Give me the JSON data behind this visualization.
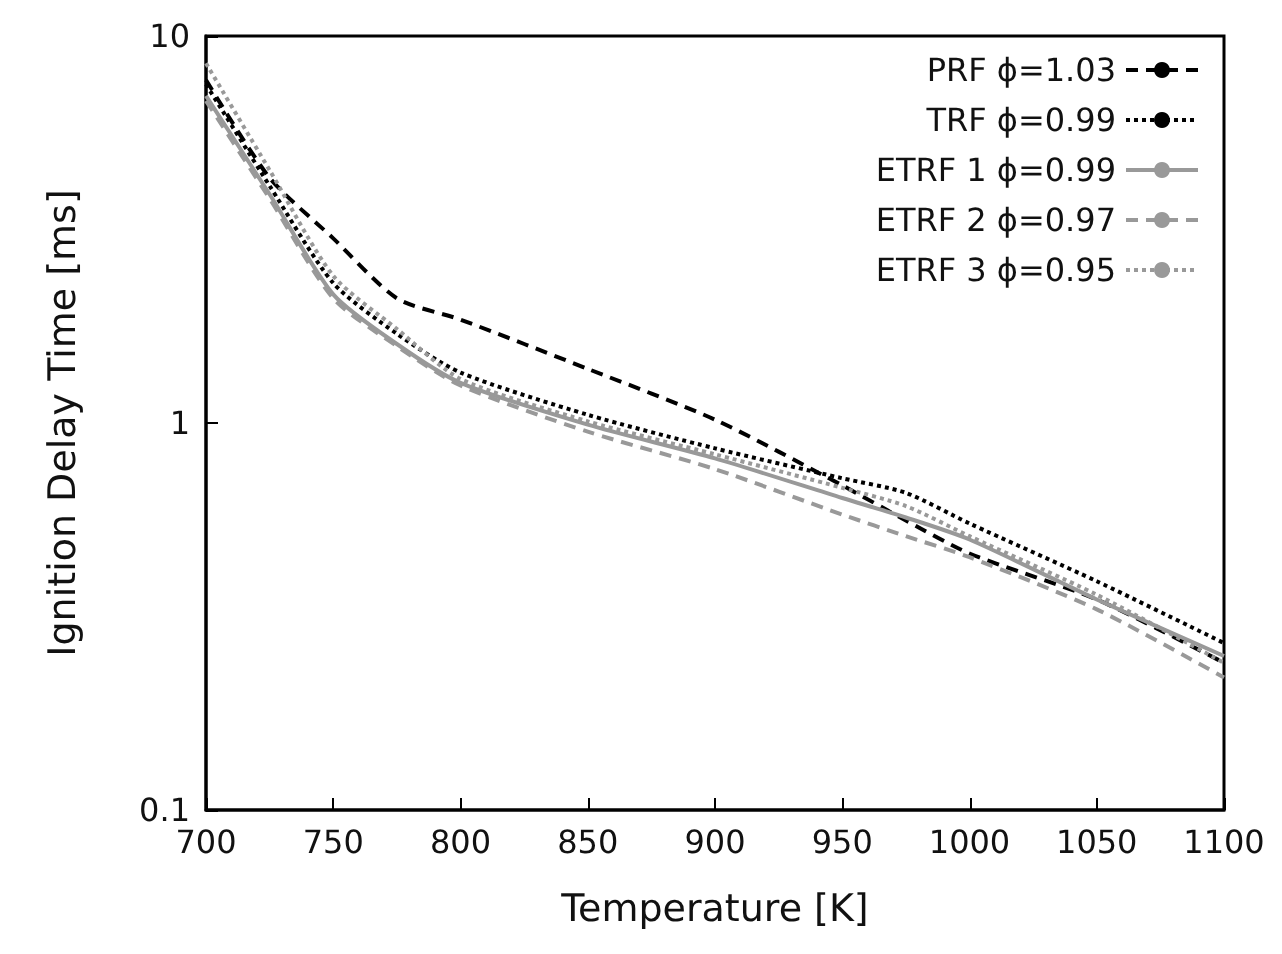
{
  "chart_data": {
    "type": "line",
    "xlabel": "Temperature [K]",
    "ylabel": "Ignition Delay Time [ms]",
    "x": [
      700,
      725,
      750,
      775,
      800,
      850,
      900,
      950,
      975,
      1000,
      1050,
      1100
    ],
    "series": [
      {
        "name": "PRF ϕ=1.03",
        "color": "#000000",
        "line_style": "dashed",
        "values": [
          7.7,
          4.3,
          3.0,
          2.1,
          1.85,
          1.38,
          1.02,
          0.69,
          0.56,
          0.46,
          0.35,
          0.24
        ]
      },
      {
        "name": "TRF ϕ=0.99",
        "color": "#000000",
        "line_style": "dotted",
        "values": [
          7.5,
          4.1,
          2.3,
          1.7,
          1.35,
          1.05,
          0.86,
          0.72,
          0.66,
          0.55,
          0.39,
          0.27
        ]
      },
      {
        "name": "ETRF 1 ϕ=0.99",
        "color": "#999999",
        "line_style": "solid",
        "values": [
          7.0,
          3.9,
          2.15,
          1.6,
          1.27,
          0.99,
          0.81,
          0.64,
          0.57,
          0.5,
          0.35,
          0.25
        ]
      },
      {
        "name": "ETRF 2 ϕ=0.97",
        "color": "#999999",
        "line_style": "dashed",
        "values": [
          6.8,
          3.8,
          2.1,
          1.58,
          1.25,
          0.95,
          0.76,
          0.58,
          0.51,
          0.45,
          0.33,
          0.22
        ]
      },
      {
        "name": "ETRF 3 ϕ=0.95",
        "color": "#999999",
        "line_style": "dotted",
        "values": [
          8.5,
          4.5,
          2.4,
          1.75,
          1.3,
          1.01,
          0.83,
          0.68,
          0.61,
          0.51,
          0.36,
          0.24
        ]
      }
    ],
    "log": "y",
    "xlim": [
      700,
      1100
    ],
    "xticks": [
      700,
      750,
      800,
      850,
      900,
      950,
      1000,
      1050,
      1100
    ],
    "ylim": [
      0.1,
      10
    ],
    "yticks": [
      0.1,
      1,
      10
    ],
    "grid": false,
    "legend": "top right",
    "marker": "none"
  }
}
